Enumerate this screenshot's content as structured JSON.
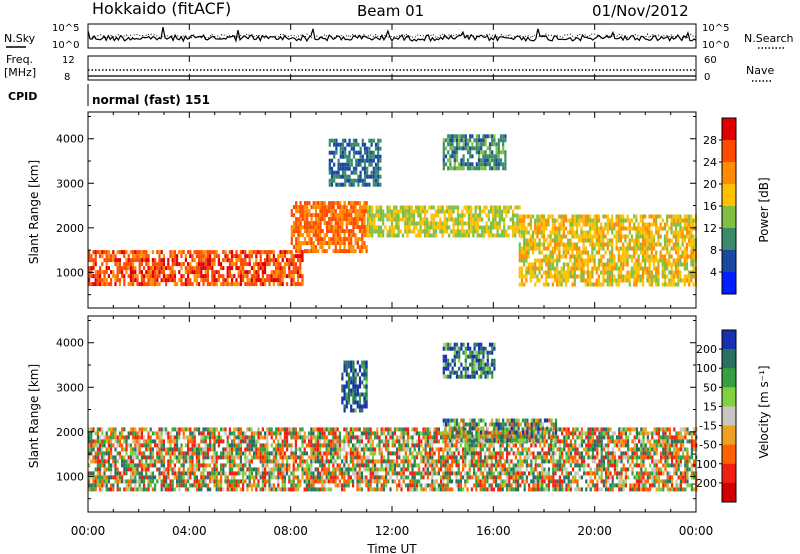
{
  "header": {
    "station": "Hokkaido (fitACF)",
    "beam": "Beam 01",
    "date": "01/Nov/2012"
  },
  "strip": {
    "nsky_label": "N.Sky",
    "nsearch_label": "N.Search",
    "noise_ticks": [
      "10^5",
      "10^0"
    ],
    "freq_label_1": "Freq.",
    "freq_label_2": "[MHz]",
    "freq_ticks": [
      "12",
      "8"
    ],
    "nave_label": "Nave",
    "nave_ticks": [
      "60",
      "0"
    ],
    "cpid_label": "CPID",
    "cpid_value": "normal (fast) 151"
  },
  "axes": {
    "ylabel": "Slant Range [km]",
    "xlabel": "Time UT",
    "yticks": [
      "4000",
      "3000",
      "2000",
      "1000"
    ],
    "xticks": [
      "00:00",
      "04:00",
      "08:00",
      "12:00",
      "16:00",
      "20:00",
      "00:00"
    ]
  },
  "power_colorbar": {
    "label": "Power [dB]",
    "ticks": [
      "28",
      "24",
      "20",
      "16",
      "12",
      "8",
      "4"
    ],
    "colors": [
      "#e00000",
      "#ff4a00",
      "#ff8c00",
      "#ffc000",
      "#80c040",
      "#3a8a6a",
      "#1848a0",
      "#0020ff"
    ]
  },
  "velocity_colorbar": {
    "label": "Velocity [m s⁻¹]",
    "ticks": [
      "200",
      "100",
      "50",
      "15",
      "-15",
      "-50",
      "-100",
      "-200"
    ],
    "colors": [
      "#1830b0",
      "#2a7060",
      "#35a040",
      "#80d040",
      "#c8c8c0",
      "#f0a020",
      "#ff6000",
      "#f02010",
      "#d00000"
    ]
  },
  "chart_data": [
    {
      "type": "heatmap",
      "title": "Power",
      "xlabel": "Time UT",
      "ylabel": "Slant Range [km]",
      "xlim": [
        "00:00",
        "24:00"
      ],
      "ylim": [
        200,
        4600
      ],
      "colorbar": "Power [dB]",
      "features": [
        {
          "t0": 0.0,
          "t1": 8.5,
          "r0": 700,
          "r1": 1500,
          "value": 26
        },
        {
          "t0": 8.0,
          "t1": 11.0,
          "r0": 1500,
          "r1": 2600,
          "value": 24
        },
        {
          "t0": 11.0,
          "t1": 17.0,
          "r0": 1800,
          "r1": 2500,
          "value": 16
        },
        {
          "t0": 17.0,
          "t1": 24.0,
          "r0": 700,
          "r1": 2300,
          "value": 18
        },
        {
          "t0": 9.5,
          "t1": 11.5,
          "r0": 3000,
          "r1": 4000,
          "value": 8
        },
        {
          "t0": 14.0,
          "t1": 16.5,
          "r0": 3300,
          "r1": 4100,
          "value": 10
        }
      ]
    },
    {
      "type": "heatmap",
      "title": "Velocity",
      "xlabel": "Time UT",
      "ylabel": "Slant Range [km]",
      "xlim": [
        "00:00",
        "24:00"
      ],
      "ylim": [
        200,
        4600
      ],
      "colorbar": "Velocity [m s-1]",
      "features": [
        {
          "t0": 0.0,
          "t1": 24.0,
          "r0": 700,
          "r1": 2100,
          "value": 0
        },
        {
          "t0": 14.0,
          "t1": 18.5,
          "r0": 1800,
          "r1": 2300,
          "value": 60
        },
        {
          "t0": 10.0,
          "t1": 11.0,
          "r0": 2500,
          "r1": 3600,
          "value": 200
        },
        {
          "t0": 14.0,
          "t1": 16.0,
          "r0": 3200,
          "r1": 4000,
          "value": 150
        }
      ]
    }
  ]
}
